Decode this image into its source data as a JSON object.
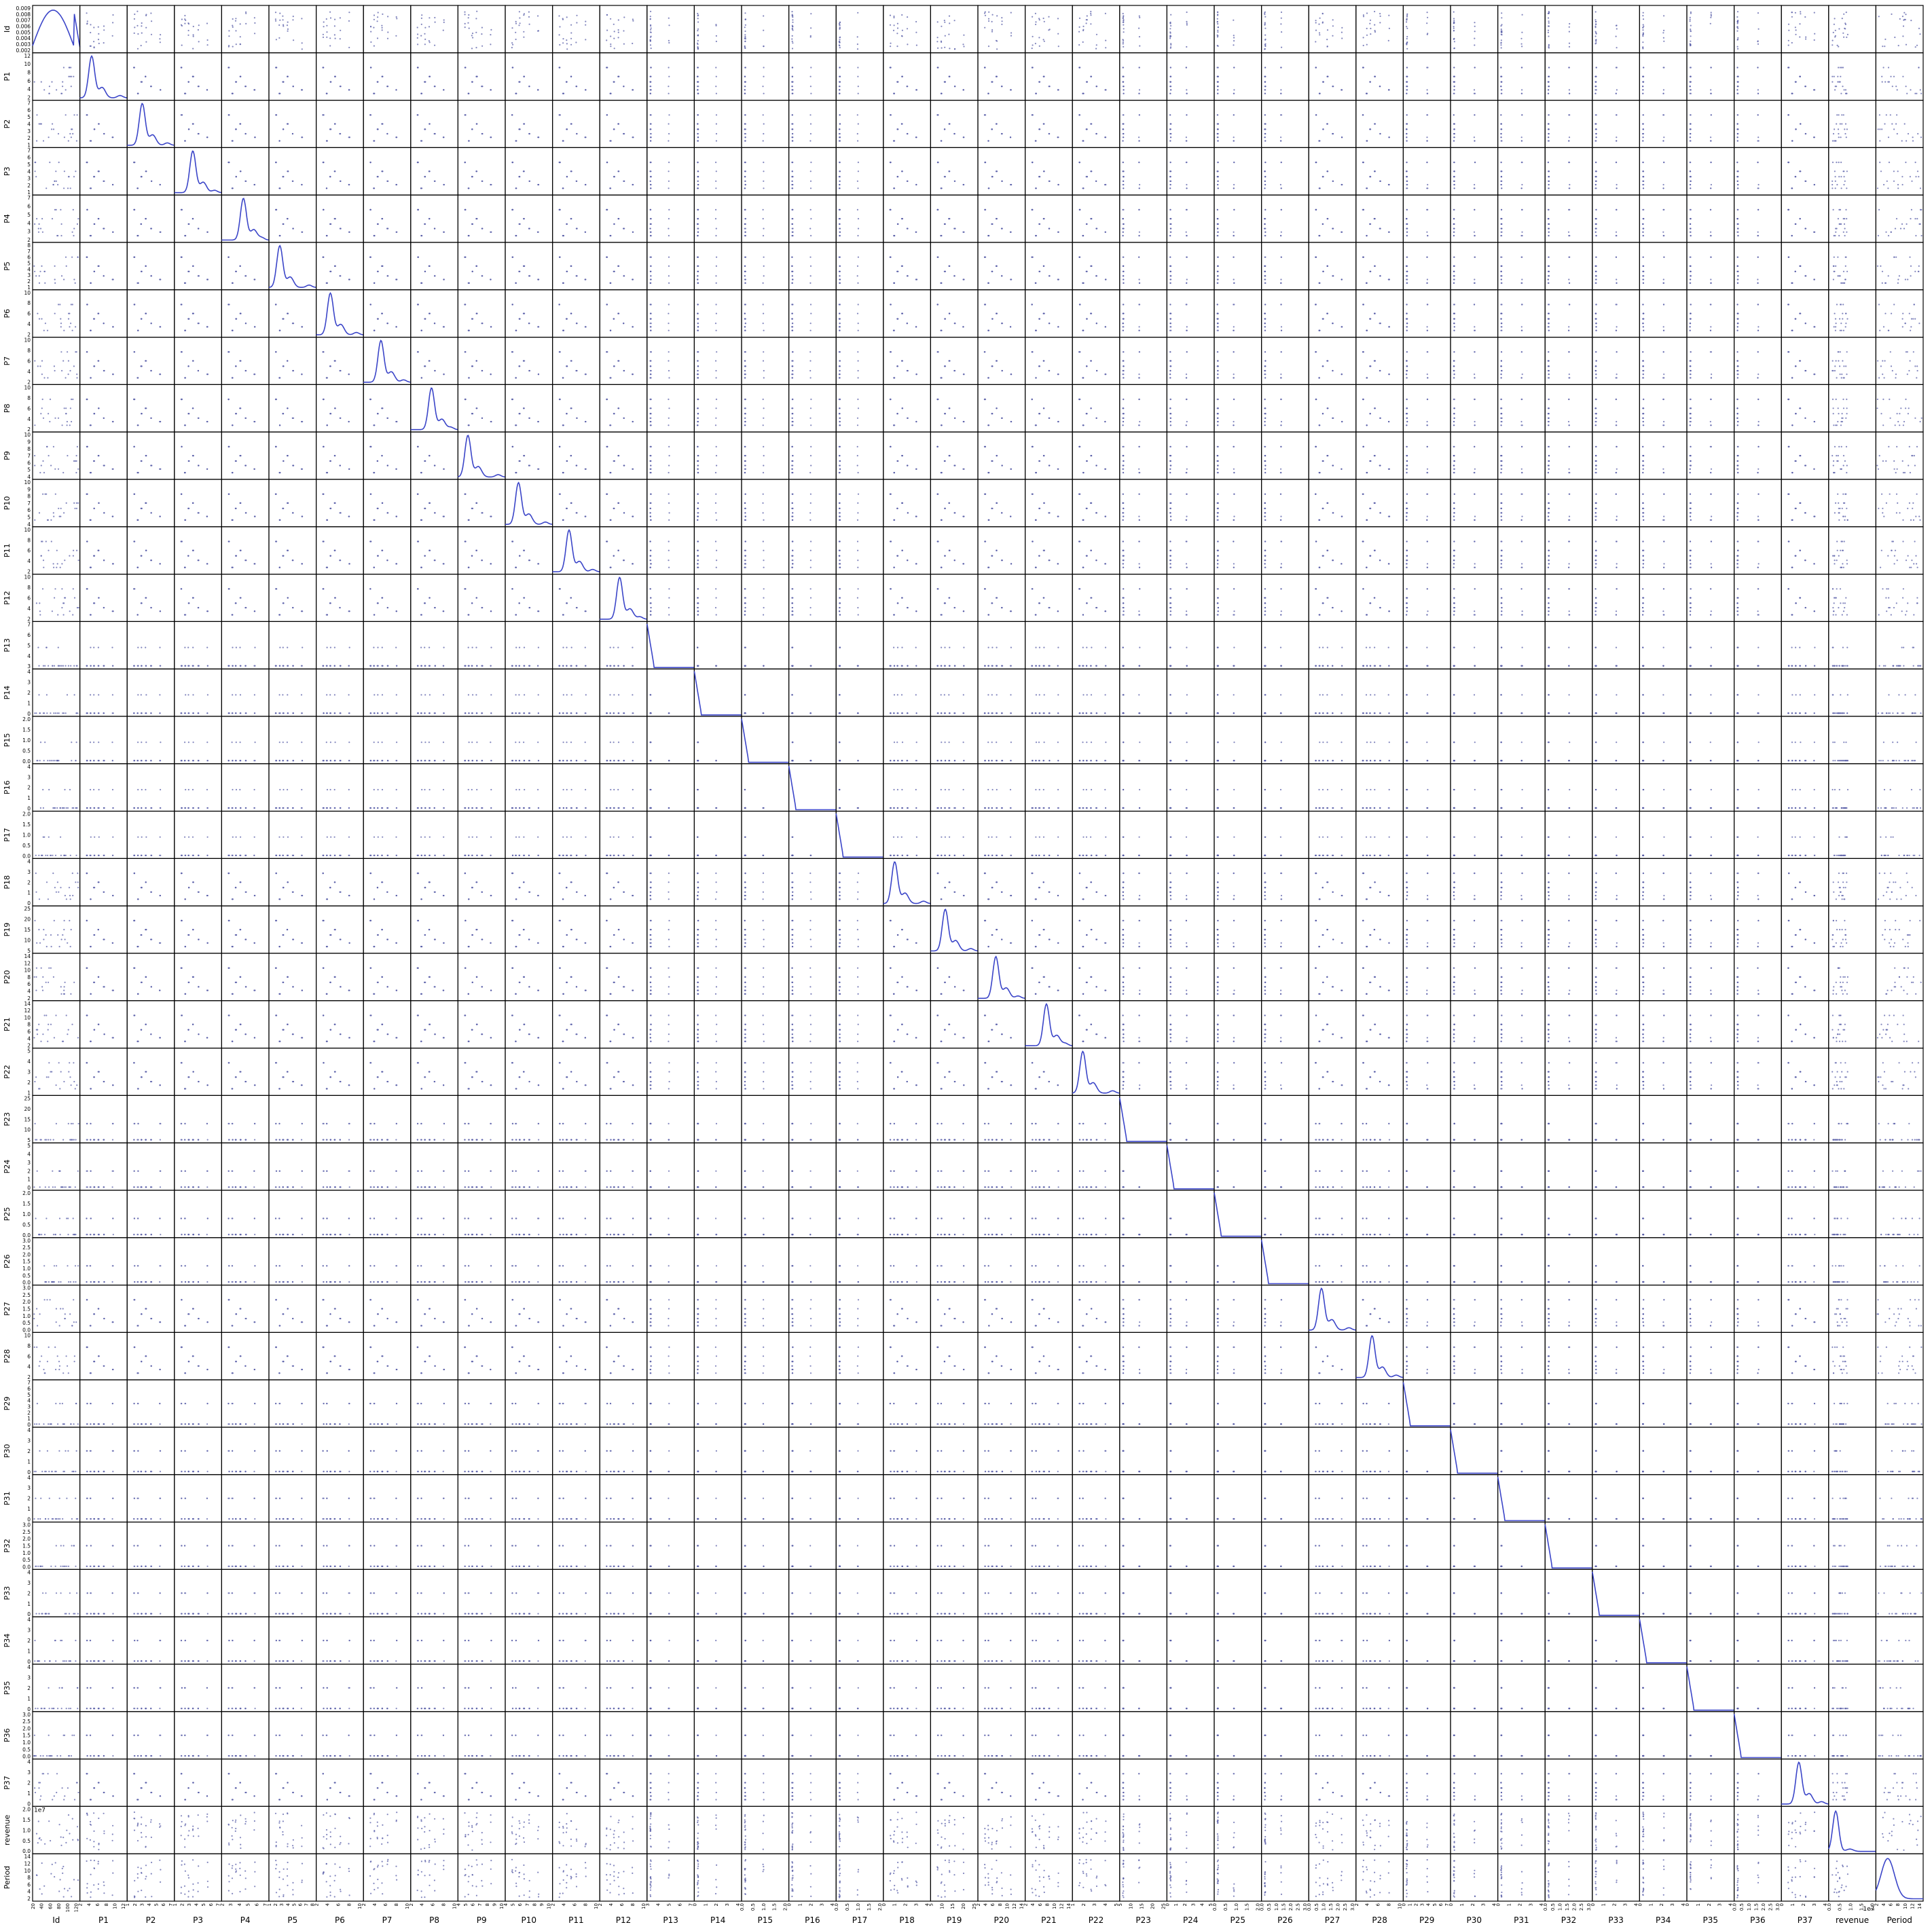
{
  "chart_data": {
    "type": "scatter",
    "variables": [
      "Id",
      "P1",
      "P2",
      "P3",
      "P4",
      "P5",
      "P6",
      "P7",
      "P8",
      "P9",
      "P10",
      "P11",
      "P12",
      "P13",
      "P14",
      "P15",
      "P16",
      "P17",
      "P18",
      "P19",
      "P20",
      "P21",
      "P22",
      "P23",
      "P24",
      "P25",
      "P26",
      "P27",
      "P28",
      "P29",
      "P30",
      "P31",
      "P32",
      "P33",
      "P34",
      "P35",
      "P36",
      "P37",
      "revenue",
      "Period"
    ],
    "diagonal": "kde",
    "ranges": {
      "Id": [
        0,
        137
      ],
      "P1": [
        1,
        12
      ],
      "P2": [
        1,
        7.5
      ],
      "P3": [
        0,
        7.5
      ],
      "P4": [
        2,
        7.5
      ],
      "P5": [
        1,
        8
      ],
      "P6": [
        1,
        10
      ],
      "P7": [
        1,
        10
      ],
      "P8": [
        1,
        10
      ],
      "P9": [
        4,
        10
      ],
      "P10": [
        4,
        10
      ],
      "P11": [
        1,
        10
      ],
      "P12": [
        1,
        10
      ],
      "P13": [
        3,
        7.5
      ],
      "P14": [
        0,
        15
      ],
      "P15": [
        0,
        10
      ],
      "P16": [
        0,
        15
      ],
      "P17": [
        0,
        15
      ],
      "P18": [
        0,
        15
      ],
      "P19": [
        1,
        25
      ],
      "P20": [
        1,
        15
      ],
      "P21": [
        1,
        15
      ],
      "P22": [
        1,
        5
      ],
      "P23": [
        1,
        25
      ],
      "P24": [
        0,
        5
      ],
      "P25": [
        0,
        5
      ],
      "P26": [
        0,
        12.5
      ],
      "P27": [
        0,
        12.5
      ],
      "P28": [
        1,
        12
      ],
      "P29": [
        0,
        7.5
      ],
      "P30": [
        0,
        25
      ],
      "P31": [
        0,
        15
      ],
      "P32": [
        0,
        25
      ],
      "P33": [
        0,
        6
      ],
      "P34": [
        0,
        30
      ],
      "P35": [
        0,
        15
      ],
      "P36": [
        0,
        20
      ],
      "P37": [
        0,
        8
      ],
      "revenue": [
        0,
        20000000.0
      ],
      "Period": [
        0,
        18
      ]
    },
    "id_kde_ticks": [
      "0.009",
      "0.008",
      "0.007",
      "0.006",
      "0.005",
      "0.004",
      "0.003",
      "0.002"
    ],
    "row_ticks": {
      "P1": [
        "12",
        "10",
        "8",
        "6",
        "4",
        "2"
      ],
      "P2": [
        "7",
        "6",
        "5",
        "4",
        "3",
        "2",
        "1"
      ],
      "P3": [
        "7",
        "6",
        "5",
        "4",
        "3",
        "2",
        "1"
      ],
      "P4": [
        "7",
        "6",
        "5",
        "4",
        "3",
        "2"
      ],
      "P5": [
        "8",
        "7",
        "6",
        "5",
        "4",
        "3",
        "2",
        "1"
      ],
      "P6": [
        "10",
        "8",
        "6",
        "4",
        "2"
      ],
      "P7": [
        "10",
        "8",
        "6",
        "4",
        "2"
      ],
      "P8": [
        "10",
        "8",
        "6",
        "4",
        "2"
      ],
      "P9": [
        "10",
        "9",
        "8",
        "7",
        "6",
        "5",
        "4"
      ],
      "P10": [
        "10",
        "9",
        "8",
        "7",
        "6",
        "5",
        "4"
      ],
      "P11": [
        "10",
        "8",
        "6",
        "4",
        "2"
      ],
      "P12": [
        "10",
        "8",
        "6",
        "4",
        "2"
      ],
      "P13": [
        "7",
        "6",
        "5",
        "4",
        "3"
      ],
      "P14": [
        "4",
        "3",
        "2",
        "1",
        "0"
      ],
      "P15": [
        "2.0",
        "1.5",
        "1.0",
        "0.5",
        "0.0"
      ],
      "P16": [
        "4",
        "3",
        "2",
        "1",
        "0"
      ],
      "P17": [
        "2.0",
        "1.5",
        "1.0",
        "0.5",
        "0.0"
      ],
      "P18": [
        "4",
        "3",
        "2",
        "1",
        "0"
      ],
      "P19": [
        "25",
        "20",
        "15",
        "10",
        "5"
      ],
      "P20": [
        "14",
        "12",
        "10",
        "8",
        "6",
        "4",
        "2"
      ],
      "P21": [
        "14",
        "12",
        "10",
        "8",
        "6",
        "4",
        "2"
      ],
      "P22": [
        "5",
        "4",
        "3",
        "2",
        "1"
      ],
      "P23": [
        "25",
        "20",
        "15",
        "10",
        "5"
      ],
      "P24": [
        "5",
        "4",
        "3",
        "2",
        "1",
        "0"
      ],
      "P25": [
        "2.0",
        "1.5",
        "1.0",
        "0.5",
        "0.0"
      ],
      "P26": [
        "3.0",
        "2.5",
        "2.0",
        "1.5",
        "1.0",
        "0.5",
        "0.0"
      ],
      "P27": [
        "3.0",
        "2.5",
        "2.0",
        "1.5",
        "1.0",
        "0.5",
        "0.0"
      ],
      "P28": [
        "10",
        "8",
        "6",
        "4",
        "2"
      ],
      "P29": [
        "7",
        "6",
        "5",
        "4",
        "3",
        "2",
        "1",
        "0"
      ],
      "P30": [
        "4",
        "3",
        "2",
        "1",
        "0"
      ],
      "P31": [
        "4",
        "3",
        "2",
        "1",
        "0"
      ],
      "P32": [
        "3.0",
        "2.5",
        "2.0",
        "1.5",
        "1.0",
        "0.5",
        "0.0"
      ],
      "P33": [
        "4",
        "3",
        "2",
        "1",
        "0"
      ],
      "P34": [
        "4",
        "3",
        "2",
        "1",
        "0"
      ],
      "P35": [
        "4",
        "3",
        "2",
        "1",
        "0"
      ],
      "P36": [
        "3.0",
        "2.5",
        "2.0",
        "1.5",
        "1.0",
        "0.5",
        "0.0"
      ],
      "P37": [
        "4",
        "3",
        "2",
        "1",
        "0"
      ],
      "revenue": [
        "2.0",
        "1.5",
        "1.0",
        "0.5",
        "0.0"
      ],
      "Period": [
        "14",
        "12",
        "10",
        "8",
        "6",
        "4",
        "2"
      ]
    },
    "revenue_offset": "1e7",
    "colors": {
      "kde": "#3b45c8",
      "points": "#5a5fa8",
      "axes": "#000000"
    },
    "grid": false,
    "legend": "none"
  }
}
